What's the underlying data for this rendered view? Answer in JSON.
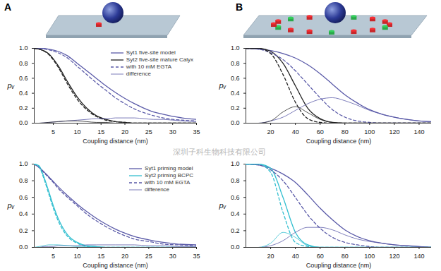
{
  "panel_labels": [
    "A",
    "B"
  ],
  "watermark": "深圳子科生物科技有限公司",
  "chart_data": [
    {
      "type": "line",
      "x_label": "Coupling distance (nm)",
      "y_label": "pᵥ",
      "x": [
        1,
        2,
        4,
        6,
        8,
        10,
        12,
        14,
        16,
        18,
        20,
        22,
        24,
        26,
        28,
        30,
        32,
        35
      ],
      "xlim": [
        1,
        35
      ],
      "xticks": [
        5,
        10,
        15,
        20,
        25,
        30,
        35
      ],
      "ylim": [
        0,
        1
      ],
      "yticks": [
        {
          "value": 0,
          "label": "0.0"
        },
        {
          "value": 0.2,
          "label": "0.2"
        },
        {
          "value": 0.4,
          "label": "0.4"
        },
        {
          "value": 0.6,
          "label": "0.6"
        },
        {
          "value": 0.8,
          "label": "0.8"
        },
        {
          "value": 1,
          "label": "1.0"
        }
      ],
      "legend": "top-right",
      "series": [
        {
          "name": "Syt1 five-site model",
          "color": "#5a5aa8",
          "line_style": "solid",
          "values": [
            1.0,
            1.0,
            0.99,
            0.96,
            0.9,
            0.8,
            0.7,
            0.6,
            0.5,
            0.41,
            0.33,
            0.26,
            0.2,
            0.15,
            0.12,
            0.09,
            0.07,
            0.05
          ]
        },
        {
          "name": "Syt2 five-site mature Calyx",
          "color": "#222222",
          "line_style": "solid",
          "values": [
            1.0,
            0.99,
            0.93,
            0.77,
            0.55,
            0.35,
            0.2,
            0.1,
            0.05,
            0.02,
            0.01,
            0,
            0,
            0,
            0,
            0,
            0,
            0
          ]
        },
        {
          "name": "with 10 mM EGTA",
          "color": "#5a5aa8",
          "line_style": "dashed",
          "values": [
            1.0,
            1.0,
            0.98,
            0.94,
            0.87,
            0.76,
            0.65,
            0.54,
            0.44,
            0.34,
            0.26,
            0.19,
            0.14,
            0.1,
            0.07,
            0.05,
            0.04,
            0.03
          ]
        },
        {
          "name": "with 10 mM EGTA",
          "color": "#222222",
          "line_style": "dashed",
          "values": [
            1.0,
            0.99,
            0.92,
            0.75,
            0.52,
            0.32,
            0.18,
            0.09,
            0.04,
            0.02,
            0.01,
            0,
            0,
            0,
            0,
            0,
            0,
            0
          ]
        },
        {
          "name": "difference",
          "color": "#5a5aa8",
          "line_style": "thin",
          "values": [
            0,
            0,
            0.01,
            0.02,
            0.03,
            0.04,
            0.05,
            0.06,
            0.06,
            0.07,
            0.07,
            0.07,
            0.06,
            0.05,
            0.05,
            0.04,
            0.03,
            0.02
          ]
        },
        {
          "name": "difference",
          "color": "#222222",
          "line_style": "thin",
          "values": [
            0,
            0,
            0.01,
            0.02,
            0.03,
            0.03,
            0.02,
            0.01,
            0.01,
            0,
            0,
            0,
            0,
            0,
            0,
            0,
            0,
            0
          ]
        }
      ]
    },
    {
      "type": "line",
      "x_label": "Coupling distance (nm)",
      "y_label": "pᵥ",
      "x": [
        0,
        10,
        20,
        30,
        40,
        50,
        60,
        70,
        80,
        90,
        100,
        110,
        120,
        130,
        140,
        150
      ],
      "xlim": [
        0,
        150
      ],
      "xticks": [
        20,
        40,
        60,
        80,
        100,
        120,
        140
      ],
      "ylim": [
        0,
        1
      ],
      "yticks": [
        {
          "value": 0,
          "label": "0.0"
        },
        {
          "value": 0.2,
          "label": "0.2"
        },
        {
          "value": 0.4,
          "label": "0.4"
        },
        {
          "value": 0.6,
          "label": "0.6"
        },
        {
          "value": 0.8,
          "label": "0.8"
        },
        {
          "value": 1,
          "label": "1.0"
        }
      ],
      "series": [
        {
          "color": "#5a5aa8",
          "line_style": "solid",
          "values": [
            1,
            0.99,
            0.97,
            0.93,
            0.87,
            0.78,
            0.66,
            0.52,
            0.38,
            0.27,
            0.18,
            0.12,
            0.08,
            0.05,
            0.03,
            0.02
          ]
        },
        {
          "color": "#222222",
          "line_style": "solid",
          "values": [
            1,
            1,
            0.96,
            0.8,
            0.5,
            0.2,
            0.06,
            0.01,
            0,
            0,
            0,
            0,
            0,
            0,
            0,
            0
          ]
        },
        {
          "color": "#5a5aa8",
          "line_style": "dashed",
          "values": [
            1,
            0.99,
            0.94,
            0.85,
            0.7,
            0.52,
            0.34,
            0.18,
            0.08,
            0.03,
            0.01,
            0,
            0,
            0,
            0,
            0
          ]
        },
        {
          "color": "#222222",
          "line_style": "dashed",
          "values": [
            1,
            1,
            0.93,
            0.65,
            0.28,
            0.06,
            0.01,
            0,
            0,
            0,
            0,
            0,
            0,
            0,
            0,
            0
          ]
        },
        {
          "color": "#5a5aa8",
          "line_style": "thin",
          "values": [
            0,
            0,
            0.03,
            0.08,
            0.17,
            0.26,
            0.32,
            0.34,
            0.3,
            0.24,
            0.17,
            0.12,
            0.08,
            0.05,
            0.03,
            0.02
          ]
        },
        {
          "color": "#222222",
          "line_style": "thin",
          "values": [
            0,
            0,
            0.03,
            0.15,
            0.22,
            0.14,
            0.05,
            0.01,
            0,
            0,
            0,
            0,
            0,
            0,
            0,
            0
          ]
        }
      ]
    },
    {
      "type": "line",
      "x_label": "Coupling distance (nm)",
      "y_label": "pᵥ",
      "x": [
        1,
        2,
        3,
        4,
        5,
        6,
        8,
        10,
        12,
        14,
        16,
        18,
        20,
        22,
        25,
        28,
        31,
        35
      ],
      "xlim": [
        1,
        35
      ],
      "xticks": [
        5,
        10,
        15,
        20,
        25,
        30,
        35
      ],
      "ylim": [
        0,
        1
      ],
      "yticks": [
        {
          "value": 0,
          "label": "0.0"
        },
        {
          "value": 0.2,
          "label": "0.2"
        },
        {
          "value": 0.4,
          "label": "0.4"
        },
        {
          "value": 0.6,
          "label": "0.6"
        },
        {
          "value": 0.8,
          "label": "0.8"
        },
        {
          "value": 1,
          "label": "1.0"
        }
      ],
      "legend": "top-right",
      "series": [
        {
          "name": "Syt1 priming model",
          "color": "#5a5aa8",
          "line_style": "solid",
          "values": [
            1.0,
            0.96,
            0.91,
            0.85,
            0.79,
            0.73,
            0.62,
            0.52,
            0.43,
            0.35,
            0.28,
            0.22,
            0.17,
            0.13,
            0.09,
            0.06,
            0.04,
            0.03
          ]
        },
        {
          "name": "Syt2 priming BCPC",
          "color": "#33bfd0",
          "line_style": "solid",
          "values": [
            1.0,
            0.98,
            0.85,
            0.68,
            0.5,
            0.35,
            0.15,
            0.06,
            0.02,
            0.01,
            0,
            0,
            0,
            0,
            0,
            0,
            0,
            0
          ]
        },
        {
          "name": "with 10 mM EGTA",
          "color": "#5a5aa8",
          "line_style": "dashed",
          "values": [
            1.0,
            0.96,
            0.9,
            0.84,
            0.78,
            0.71,
            0.6,
            0.5,
            0.4,
            0.32,
            0.25,
            0.19,
            0.14,
            0.1,
            0.07,
            0.04,
            0.03,
            0.02
          ]
        },
        {
          "name": "with 10 mM EGTA",
          "color": "#33bfd0",
          "line_style": "dashed",
          "values": [
            1.0,
            0.97,
            0.83,
            0.65,
            0.47,
            0.32,
            0.13,
            0.05,
            0.01,
            0,
            0,
            0,
            0,
            0,
            0,
            0,
            0,
            0
          ]
        },
        {
          "name": "difference",
          "color": "#5a5aa8",
          "line_style": "thin",
          "values": [
            0,
            0,
            0.01,
            0.01,
            0.01,
            0.02,
            0.02,
            0.02,
            0.03,
            0.03,
            0.03,
            0.03,
            0.03,
            0.03,
            0.02,
            0.02,
            0.01,
            0.01
          ]
        },
        {
          "name": "difference",
          "color": "#33bfd0",
          "line_style": "thin",
          "values": [
            0,
            0.01,
            0.02,
            0.03,
            0.03,
            0.03,
            0.02,
            0.01,
            0.01,
            0.01,
            0,
            0,
            0,
            0,
            0,
            0,
            0,
            0
          ]
        }
      ]
    },
    {
      "type": "line",
      "x_label": "Coupling distance (nm)",
      "y_label": "pᵥ",
      "x": [
        0,
        10,
        20,
        30,
        40,
        50,
        60,
        70,
        80,
        90,
        100,
        110,
        120,
        130,
        140,
        150
      ],
      "xlim": [
        0,
        150
      ],
      "xticks": [
        20,
        40,
        60,
        80,
        100,
        120,
        140
      ],
      "ylim": [
        0,
        1
      ],
      "yticks": [
        {
          "value": 0,
          "label": "0.0"
        },
        {
          "value": 0.2,
          "label": "0.2"
        },
        {
          "value": 0.4,
          "label": "0.4"
        },
        {
          "value": 0.6,
          "label": "0.6"
        },
        {
          "value": 0.8,
          "label": "0.8"
        },
        {
          "value": 1,
          "label": "1.0"
        }
      ],
      "series": [
        {
          "color": "#5a5aa8",
          "line_style": "solid",
          "values": [
            1,
            0.99,
            0.95,
            0.88,
            0.78,
            0.63,
            0.47,
            0.33,
            0.21,
            0.13,
            0.08,
            0.05,
            0.03,
            0.02,
            0.01,
            0
          ]
        },
        {
          "color": "#33bfd0",
          "line_style": "solid",
          "values": [
            1,
            1,
            0.95,
            0.6,
            0.18,
            0.03,
            0,
            0,
            0,
            0,
            0,
            0,
            0,
            0,
            0,
            0
          ]
        },
        {
          "color": "#5a5aa8",
          "line_style": "dashed",
          "values": [
            1,
            0.99,
            0.93,
            0.8,
            0.6,
            0.39,
            0.23,
            0.12,
            0.06,
            0.03,
            0.01,
            0,
            0,
            0,
            0,
            0
          ]
        },
        {
          "color": "#33bfd0",
          "line_style": "dashed",
          "values": [
            1,
            1,
            0.9,
            0.42,
            0.06,
            0.01,
            0,
            0,
            0,
            0,
            0,
            0,
            0,
            0,
            0,
            0
          ]
        },
        {
          "color": "#5a5aa8",
          "line_style": "thin",
          "values": [
            0,
            0,
            0.02,
            0.08,
            0.18,
            0.24,
            0.24,
            0.21,
            0.15,
            0.1,
            0.07,
            0.05,
            0.03,
            0.02,
            0.01,
            0
          ]
        },
        {
          "color": "#33bfd0",
          "line_style": "thin",
          "values": [
            0,
            0,
            0.05,
            0.18,
            0.12,
            0.02,
            0,
            0,
            0,
            0,
            0,
            0,
            0,
            0,
            0,
            0
          ]
        }
      ]
    }
  ]
}
